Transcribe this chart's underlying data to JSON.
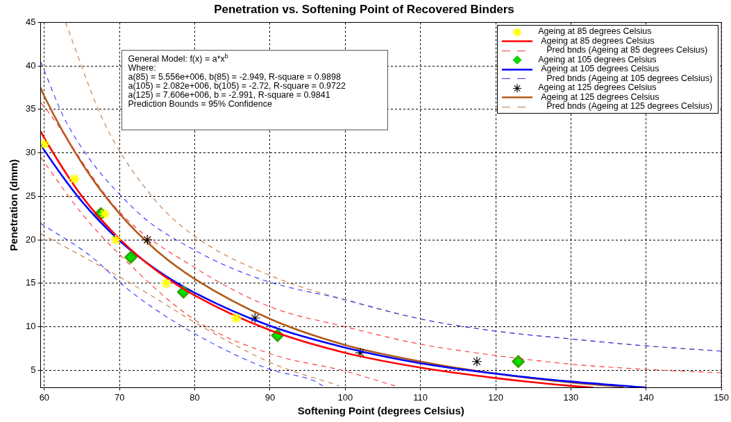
{
  "chart_data": {
    "type": "line",
    "title": "Penetration vs. Softening Point of Recovered Binders",
    "xlabel": "Softening Point (degrees Celsius)",
    "ylabel": "Penetration (dmm)",
    "xlim": [
      59.5,
      150
    ],
    "xticks": [
      60,
      70,
      80,
      90,
      100,
      110,
      120,
      130,
      140,
      150
    ],
    "ylim": [
      3,
      45
    ],
    "yticks": [
      5,
      10,
      15,
      20,
      25,
      30,
      35,
      40,
      45
    ],
    "grid": true,
    "legend": "top right",
    "annotations": [
      "General Model: f(x) = a*x$^{b}$",
      "Where:",
      "a(85) = 5.556e+006, b(85) = -2.949, R-square = 0.9898",
      "a(105) = 2.082e+006, b(105) = -2.72, R-square = 0.9722",
      "a(125) = 7.606e+006, b = -2.991, R-square = 0.9841",
      "Prediction Bounds = 95% Confidence"
    ],
    "series": [
      {
        "name": "Ageing at 85 degrees Celsius",
        "type": "scatter",
        "marker": "cross",
        "color": "#ffff00",
        "x": [
          60,
          64,
          68,
          69.5,
          76.2,
          85.5
        ],
        "values": [
          31,
          27,
          23,
          20,
          15,
          11
        ]
      },
      {
        "name": "Ageing at 85 degrees Celsius",
        "line_style": "solid",
        "color": "#ff0000",
        "x": [
          59.5,
          60,
          65,
          70,
          75,
          80,
          90,
          100,
          110,
          120,
          130,
          133
        ],
        "values": [
          32.5,
          31.7,
          25.0,
          20.1,
          16.4,
          13.6,
          9.6,
          7.0,
          5.3,
          4.1,
          3.2,
          3.0
        ]
      },
      {
        "name": "Pred bnds (Ageing at 85 degrees Celsius)",
        "line_style": "dashed",
        "color": "#ff3030",
        "x": [
          59.5,
          60,
          70,
          80,
          90,
          100,
          110,
          120,
          130,
          140,
          150
        ],
        "values": [
          35.8,
          35.3,
          23.2,
          16.8,
          12.3,
          10.0,
          8.0,
          6.7,
          5.7,
          5.1,
          4.7
        ]
      },
      {
        "line_style": "dashed",
        "color": "#ff3030",
        "x": [
          59.5,
          65,
          70,
          80,
          90,
          100,
          106.6
        ],
        "values": [
          29.5,
          23.0,
          18.3,
          10.8,
          6.9,
          4.9,
          3.2
        ]
      },
      {
        "name": "Ageing at 105 degrees Celsius",
        "type": "scatter",
        "marker": "diamond",
        "color": "#00e000",
        "x": [
          67.5,
          71.5,
          78.5,
          91,
          123
        ],
        "values": [
          23,
          18,
          14,
          9,
          6
        ]
      },
      {
        "name": "Ageing at 105 degrees Celsius",
        "line_style": "solid",
        "color": "#0000ff",
        "x": [
          59.5,
          60,
          65,
          70,
          75,
          80,
          90,
          100,
          110,
          120,
          130,
          140
        ],
        "values": [
          31.0,
          30.3,
          24.4,
          19.9,
          16.5,
          13.9,
          10.1,
          7.6,
          5.8,
          4.6,
          3.7,
          3.0
        ]
      },
      {
        "name": "Pred bnds (Ageing at 105 degrees Celsius)",
        "line_style": "dashed",
        "color": "#3030ff",
        "x": [
          59.5,
          63,
          72,
          80,
          89,
          100,
          110,
          120,
          130,
          140,
          150
        ],
        "values": [
          40.5,
          33.4,
          23.5,
          18.8,
          15.4,
          13.1,
          10.9,
          9.5,
          8.6,
          7.8,
          7.2
        ]
      },
      {
        "line_style": "dashed",
        "color": "#3030ff",
        "x": [
          59.5,
          65.9,
          71.7,
          80,
          90,
          95.8,
          97
        ],
        "values": [
          21.9,
          18.3,
          13.9,
          9.2,
          5.1,
          3.8,
          3.2
        ]
      },
      {
        "name": "Ageing at 125 degrees Celsius",
        "type": "scatter",
        "marker": "cross",
        "color": "#000000",
        "x": [
          73.7,
          88,
          102,
          117.5
        ],
        "values": [
          20,
          11,
          7,
          6
        ]
      },
      {
        "name": "Ageing at 125 degrees Celsius",
        "line_style": "solid",
        "color": "#b05a1a",
        "x": [
          59.5,
          60,
          65,
          70,
          75,
          80,
          90,
          100,
          110,
          120,
          130,
          137
        ],
        "values": [
          37.5,
          36.5,
          28.8,
          23.0,
          18.7,
          15.5,
          10.9,
          7.9,
          6.0,
          4.6,
          3.6,
          3.1
        ]
      },
      {
        "name": "Pred bnds (Ageing at 125 degrees Celsius)",
        "line_style": "dashed",
        "color": "#c07840",
        "x": [
          62.8,
          68,
          74.5,
          80,
          90,
          100,
          110,
          120,
          130,
          140,
          150
        ],
        "values": [
          45,
          33.4,
          24.8,
          20.4,
          15.9,
          13.1,
          10.9,
          9.5,
          8.6,
          7.8,
          7.2
        ]
      },
      {
        "line_style": "dashed",
        "color": "#c07840",
        "x": [
          59.5,
          67.8,
          74,
          80,
          90,
          99.2
        ],
        "values": [
          20.7,
          16.8,
          13.7,
          10.5,
          5.9,
          3.2
        ]
      }
    ]
  }
}
